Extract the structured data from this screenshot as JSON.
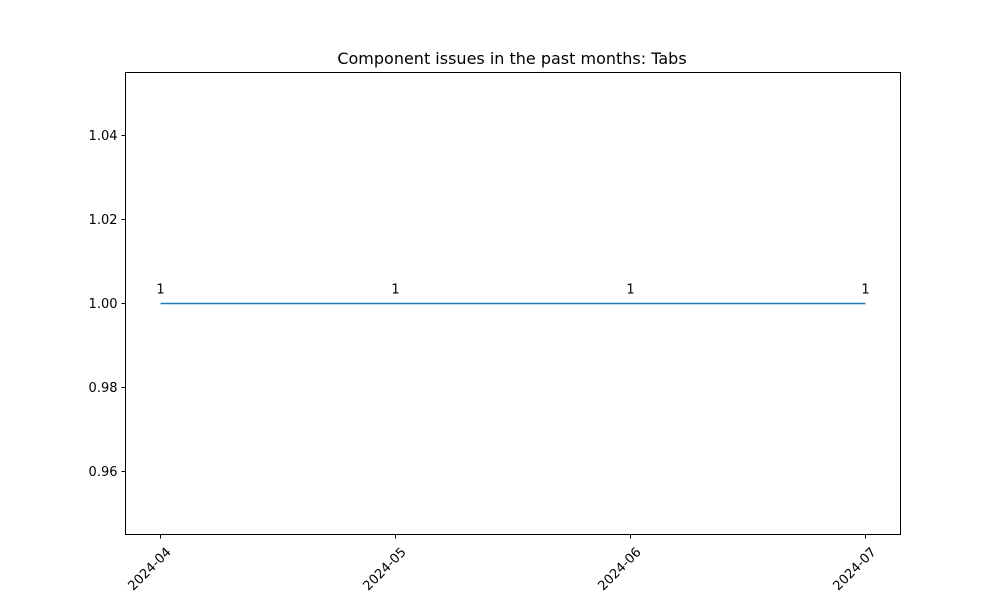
{
  "chart_data": {
    "type": "line",
    "title": "Component issues in the past months: Tabs",
    "xlabel": "",
    "ylabel": "",
    "x": [
      "2024-04",
      "2024-05",
      "2024-06",
      "2024-07"
    ],
    "series": [
      {
        "values": [
          1,
          1,
          1,
          1
        ],
        "data_labels": [
          "1",
          "1",
          "1",
          "1"
        ],
        "color": "#1f77b4"
      }
    ],
    "ylim": [
      0.945,
      1.055
    ],
    "y_ticks": [
      0.96,
      0.98,
      1.0,
      1.02,
      1.04
    ],
    "y_tick_labels": [
      "0.96",
      "0.98",
      "1.00",
      "1.02",
      "1.04"
    ],
    "x_tick_labels": [
      "2024-04",
      "2024-05",
      "2024-06",
      "2024-07"
    ],
    "x_tick_rotation": 45,
    "grid": false,
    "legend": "none"
  }
}
